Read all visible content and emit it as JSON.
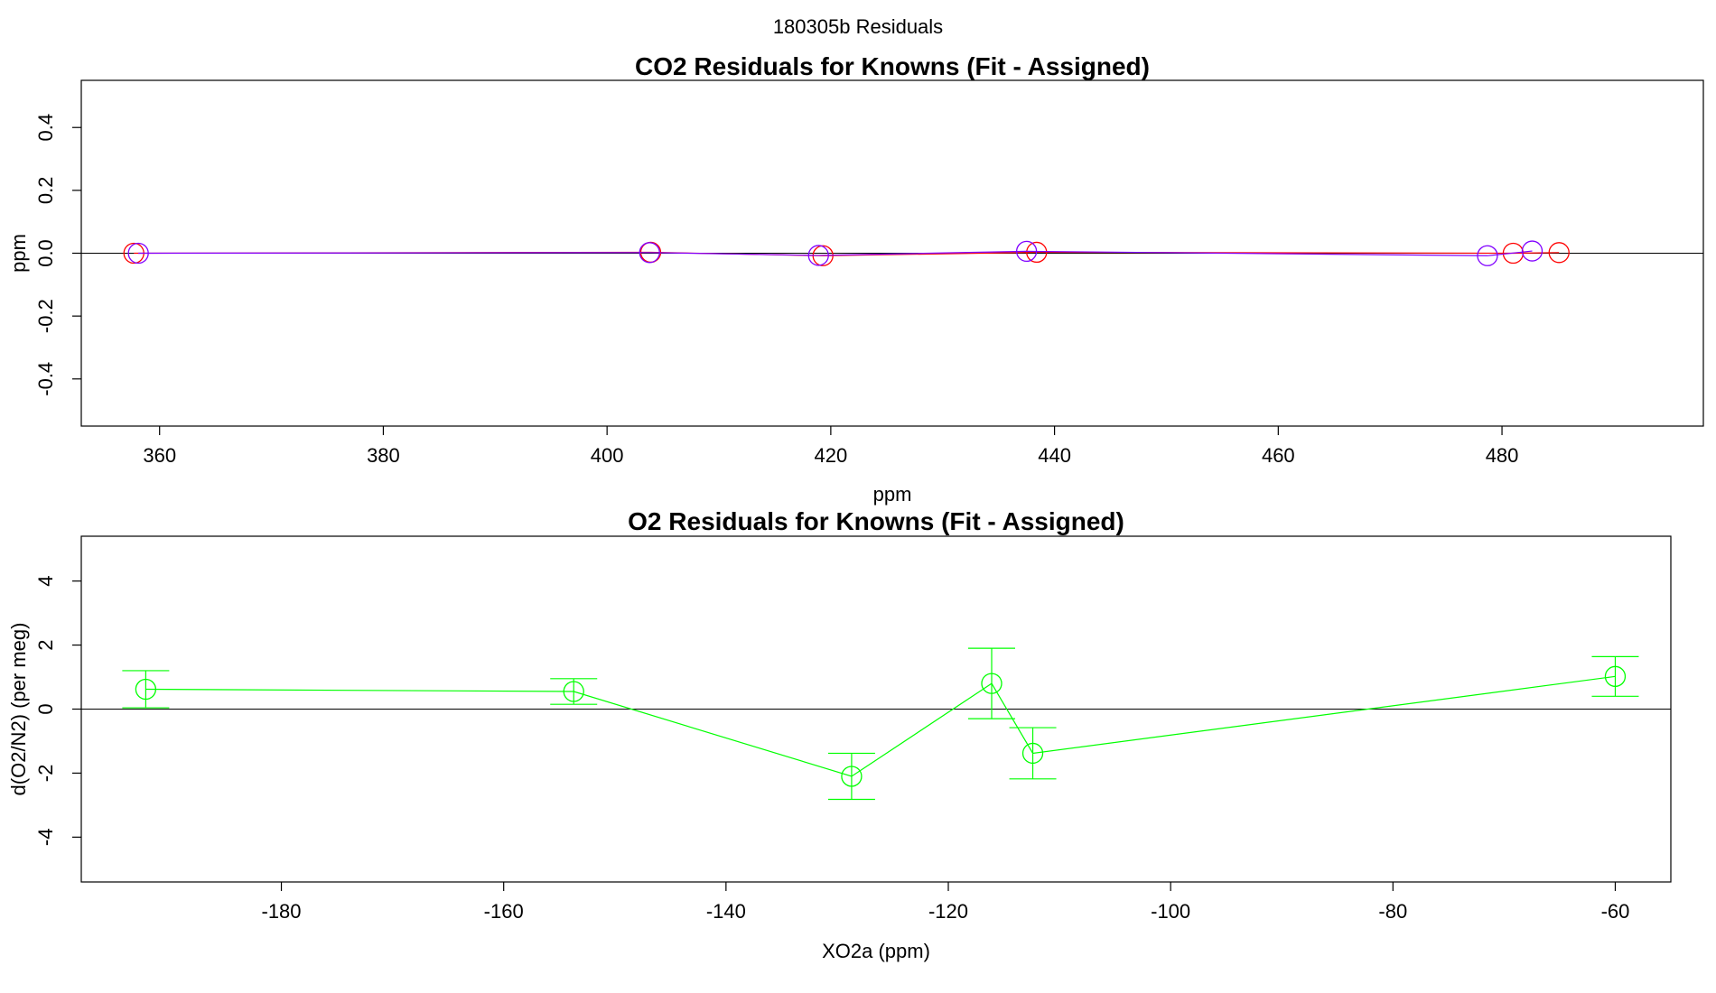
{
  "figure": {
    "main_title": "180305b  Residuals"
  },
  "chart_data": [
    {
      "type": "scatter",
      "title": "CO2 Residuals for Knowns (Fit - Assigned)",
      "xlabel": "ppm",
      "ylabel": "ppm",
      "xlim": [
        353,
        498
      ],
      "ylim": [
        -0.55,
        0.55
      ],
      "xticks": [
        360,
        380,
        400,
        420,
        440,
        460,
        480
      ],
      "yticks": [
        -0.4,
        -0.2,
        0.0,
        0.2,
        0.4
      ],
      "xtick_labels": [
        "360",
        "380",
        "400",
        "420",
        "440",
        "460",
        "480"
      ],
      "ytick_labels": [
        "-0.4",
        "-0.2",
        "0.0",
        "0.2",
        "0.4"
      ],
      "reference_line_y": 0,
      "grid": false,
      "series": [
        {
          "color": "#ff0000",
          "connected": true,
          "x": [
            357.7,
            403.9,
            419.3,
            438.4,
            481.0,
            485.1
          ],
          "y": [
            0.0,
            0.003,
            -0.008,
            0.003,
            0.0,
            0.002
          ]
        },
        {
          "color": "#8000ff",
          "connected": true,
          "x": [
            358.1,
            403.8,
            418.9,
            437.5,
            478.7,
            482.7
          ],
          "y": [
            0.0,
            0.002,
            -0.007,
            0.006,
            -0.008,
            0.007
          ]
        }
      ]
    },
    {
      "type": "scatter",
      "title": "O2 Residuals for Knowns (Fit - Assigned)",
      "xlabel": "XO2a (ppm)",
      "ylabel": "d(O2/N2) (per meg)",
      "xlim": [
        -198,
        -55
      ],
      "ylim": [
        -5.4,
        5.4
      ],
      "xticks": [
        -180,
        -160,
        -140,
        -120,
        -100,
        -80,
        -60
      ],
      "yticks": [
        -4,
        -2,
        0,
        2,
        4
      ],
      "xtick_labels": [
        "-180",
        "-160",
        "-140",
        "-120",
        "-100",
        "-80",
        "-60"
      ],
      "ytick_labels": [
        "-4",
        "-2",
        "0",
        "2",
        "4"
      ],
      "reference_line_y": 0,
      "grid": false,
      "series": [
        {
          "color": "#00ff00",
          "connected": true,
          "error_bars": true,
          "x": [
            -192.2,
            -153.7,
            -128.7,
            -116.1,
            -112.4,
            -60.0
          ],
          "y": [
            0.62,
            0.55,
            -2.1,
            0.8,
            -1.38,
            1.02
          ],
          "err": [
            0.58,
            0.4,
            0.72,
            1.1,
            0.8,
            0.62
          ]
        }
      ]
    }
  ]
}
